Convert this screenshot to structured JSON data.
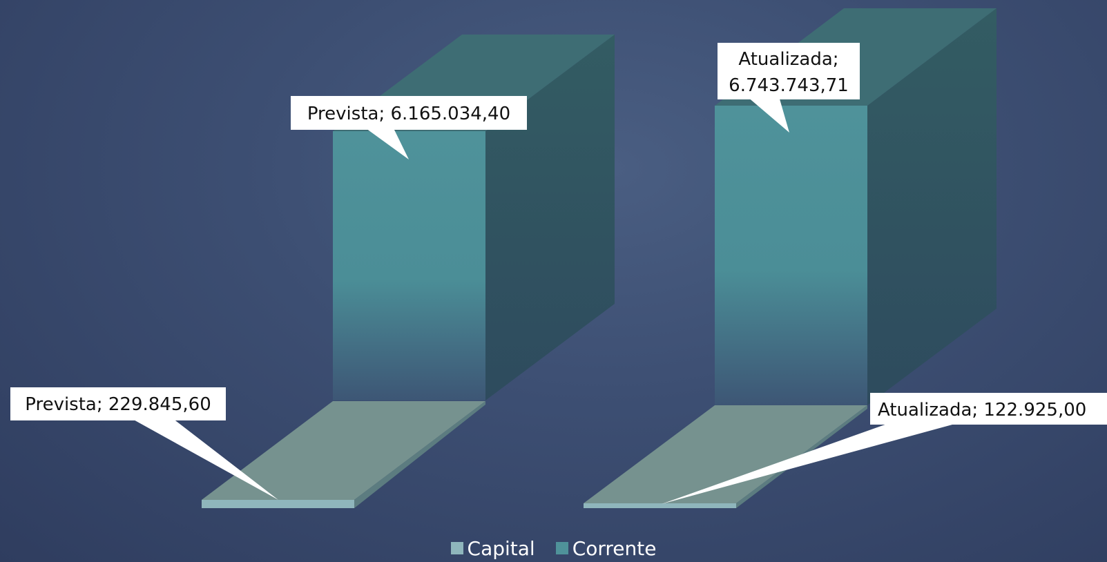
{
  "chart_data": {
    "type": "bar",
    "categories": [
      "Prevista",
      "Atualizada"
    ],
    "series": [
      {
        "name": "Capital",
        "values": [
          229845.6,
          122925.0
        ],
        "color": "#8fb6bc"
      },
      {
        "name": "Corrente",
        "values": [
          6165034.4,
          6743743.71
        ],
        "color": "#4f929a"
      }
    ],
    "data_labels": {
      "capital": [
        "Prevista; 229.845,60",
        "Atualizada; 122.925,00"
      ],
      "corrente": [
        "Prevista; 6.165.034,40",
        "Atualizada;\n6.743.743,71"
      ]
    },
    "legend_position": "bottom",
    "grid": false
  }
}
